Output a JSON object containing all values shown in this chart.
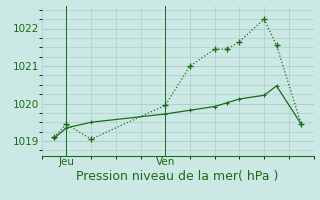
{
  "xlabel": "Pression niveau de la mer( hPa )",
  "background_color": "#cce8e4",
  "grid_color": "#aad0cc",
  "line_color": "#1a6b1a",
  "ylim": [
    1018.6,
    1022.6
  ],
  "xlim": [
    0,
    11
  ],
  "yticks": [
    1019,
    1020,
    1021,
    1022
  ],
  "xtick_positions": [
    1,
    5
  ],
  "xtick_labels": [
    "Jeu",
    "Ven"
  ],
  "line1_x": [
    0.5,
    1.0,
    2.0,
    5.0,
    6.0,
    7.0,
    7.5,
    8.0,
    9.0,
    9.5,
    10.5
  ],
  "line1_y": [
    1019.1,
    1019.45,
    1019.05,
    1019.95,
    1021.0,
    1021.45,
    1021.45,
    1021.65,
    1022.25,
    1021.55,
    1019.45
  ],
  "line2_x": [
    0.5,
    1.0,
    2.0,
    5.0,
    6.0,
    7.0,
    7.5,
    8.0,
    9.0,
    9.5,
    10.5
  ],
  "line2_y": [
    1019.07,
    1019.35,
    1019.5,
    1019.72,
    1019.82,
    1019.92,
    1020.02,
    1020.12,
    1020.22,
    1020.47,
    1019.45
  ],
  "fontsize_xlabel": 9,
  "fontsize_tick": 7.5
}
